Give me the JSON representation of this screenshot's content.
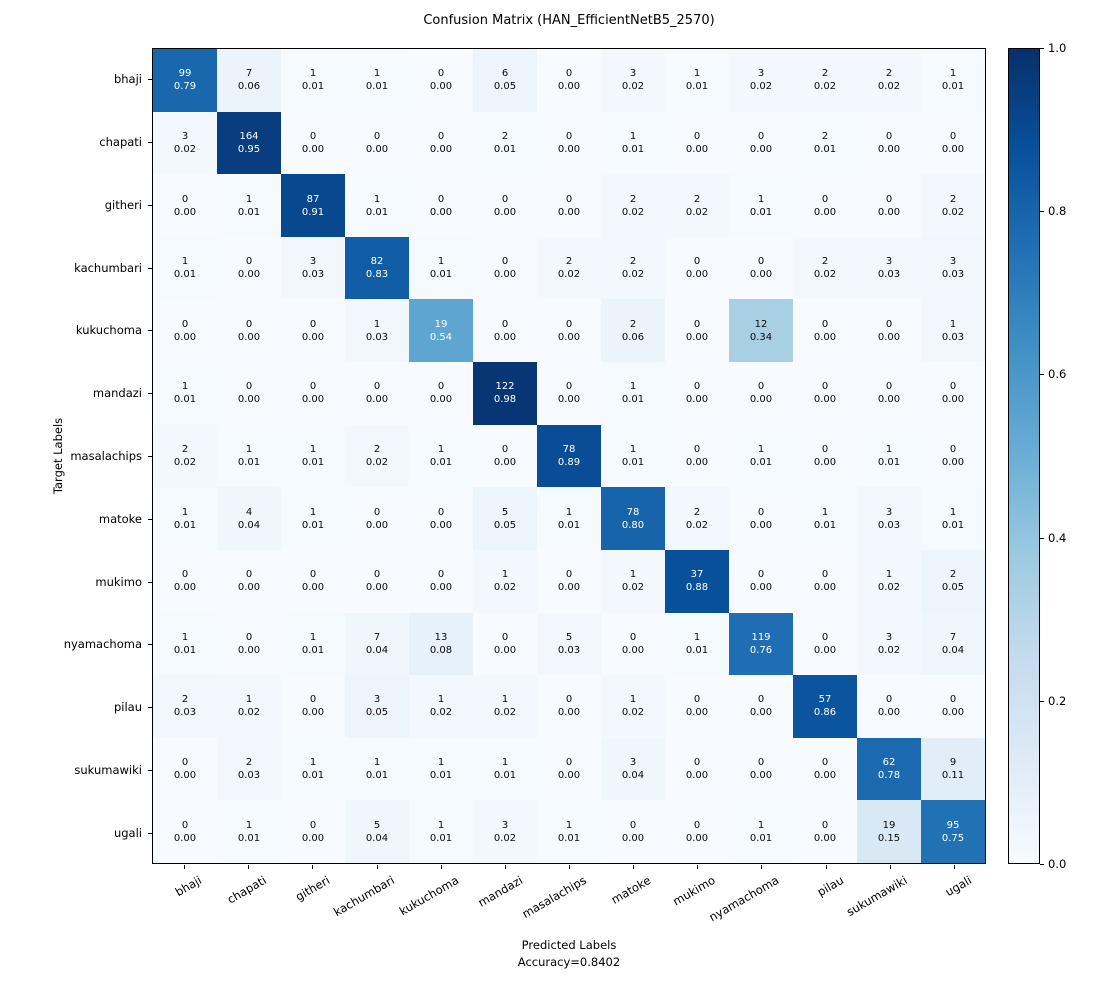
{
  "chart_data": {
    "type": "heatmap",
    "title": "Confusion Matrix (HAN_EfficientNetB5_2570)",
    "xlabel": "Predicted Labels",
    "accuracy_label": "Accuracy=0.8402",
    "ylabel": "Target Labels",
    "labels": [
      "bhaji",
      "chapati",
      "githeri",
      "kachumbari",
      "kukuchoma",
      "mandazi",
      "masalachips",
      "matoke",
      "mukimo",
      "nyamachoma",
      "pilau",
      "sukumawiki",
      "ugali"
    ],
    "counts": [
      [
        99,
        7,
        1,
        1,
        0,
        6,
        0,
        3,
        1,
        3,
        2,
        2,
        1
      ],
      [
        3,
        164,
        0,
        0,
        0,
        2,
        0,
        1,
        0,
        0,
        2,
        0,
        0
      ],
      [
        0,
        1,
        87,
        1,
        0,
        0,
        0,
        2,
        2,
        1,
        0,
        0,
        2
      ],
      [
        1,
        0,
        3,
        82,
        1,
        0,
        2,
        2,
        0,
        0,
        2,
        3,
        3
      ],
      [
        0,
        0,
        0,
        1,
        19,
        0,
        0,
        2,
        0,
        12,
        0,
        0,
        1
      ],
      [
        1,
        0,
        0,
        0,
        0,
        122,
        0,
        1,
        0,
        0,
        0,
        0,
        0
      ],
      [
        2,
        1,
        1,
        2,
        1,
        0,
        78,
        1,
        0,
        1,
        0,
        1,
        0
      ],
      [
        1,
        4,
        1,
        0,
        0,
        5,
        1,
        78,
        2,
        0,
        1,
        3,
        1
      ],
      [
        0,
        0,
        0,
        0,
        0,
        1,
        0,
        1,
        37,
        0,
        0,
        1,
        2
      ],
      [
        1,
        0,
        1,
        7,
        13,
        0,
        5,
        0,
        1,
        119,
        0,
        3,
        7
      ],
      [
        2,
        1,
        0,
        3,
        1,
        1,
        0,
        1,
        0,
        0,
        57,
        0,
        0
      ],
      [
        0,
        2,
        1,
        1,
        1,
        1,
        0,
        3,
        0,
        0,
        0,
        62,
        9
      ],
      [
        0,
        1,
        0,
        5,
        1,
        3,
        1,
        0,
        0,
        1,
        0,
        19,
        95
      ]
    ],
    "proportions": [
      [
        0.79,
        0.06,
        0.01,
        0.01,
        0.0,
        0.05,
        0.0,
        0.02,
        0.01,
        0.02,
        0.02,
        0.02,
        0.01
      ],
      [
        0.02,
        0.95,
        0.0,
        0.0,
        0.0,
        0.01,
        0.0,
        0.01,
        0.0,
        0.0,
        0.01,
        0.0,
        0.0
      ],
      [
        0.0,
        0.01,
        0.91,
        0.01,
        0.0,
        0.0,
        0.0,
        0.02,
        0.02,
        0.01,
        0.0,
        0.0,
        0.02
      ],
      [
        0.01,
        0.0,
        0.03,
        0.83,
        0.01,
        0.0,
        0.02,
        0.02,
        0.0,
        0.0,
        0.02,
        0.03,
        0.03
      ],
      [
        0.0,
        0.0,
        0.0,
        0.03,
        0.54,
        0.0,
        0.0,
        0.06,
        0.0,
        0.34,
        0.0,
        0.0,
        0.03
      ],
      [
        0.01,
        0.0,
        0.0,
        0.0,
        0.0,
        0.98,
        0.0,
        0.01,
        0.0,
        0.0,
        0.0,
        0.0,
        0.0
      ],
      [
        0.02,
        0.01,
        0.01,
        0.02,
        0.01,
        0.0,
        0.89,
        0.01,
        0.0,
        0.01,
        0.0,
        0.01,
        0.0
      ],
      [
        0.01,
        0.04,
        0.01,
        0.0,
        0.0,
        0.05,
        0.01,
        0.8,
        0.02,
        0.0,
        0.01,
        0.03,
        0.01
      ],
      [
        0.0,
        0.0,
        0.0,
        0.0,
        0.0,
        0.02,
        0.0,
        0.02,
        0.88,
        0.0,
        0.0,
        0.02,
        0.05
      ],
      [
        0.01,
        0.0,
        0.01,
        0.04,
        0.08,
        0.0,
        0.03,
        0.0,
        0.01,
        0.76,
        0.0,
        0.02,
        0.04
      ],
      [
        0.03,
        0.02,
        0.0,
        0.05,
        0.02,
        0.02,
        0.0,
        0.02,
        0.0,
        0.0,
        0.86,
        0.0,
        0.0
      ],
      [
        0.0,
        0.03,
        0.01,
        0.01,
        0.01,
        0.01,
        0.0,
        0.04,
        0.0,
        0.0,
        0.0,
        0.78,
        0.11
      ],
      [
        0.0,
        0.01,
        0.0,
        0.04,
        0.01,
        0.02,
        0.01,
        0.0,
        0.0,
        0.01,
        0.0,
        0.15,
        0.75
      ]
    ],
    "colormap_name": "Blues",
    "colormap_colors": [
      "#f7fbff",
      "#deebf7",
      "#c6dbef",
      "#9ecae1",
      "#6baed6",
      "#4292c6",
      "#2171b5",
      "#08519c",
      "#08306b"
    ],
    "colorbar": {
      "vmin": 0.0,
      "vmax": 1.0,
      "tick_labels": [
        "1.0",
        "0.8",
        "0.6",
        "0.4",
        "0.2",
        "0.0"
      ]
    },
    "cell_text_colors": {
      "light": "#ffffff",
      "dark": "#0a0a0a"
    },
    "legend_position": "right-colorbar",
    "grid": false
  }
}
